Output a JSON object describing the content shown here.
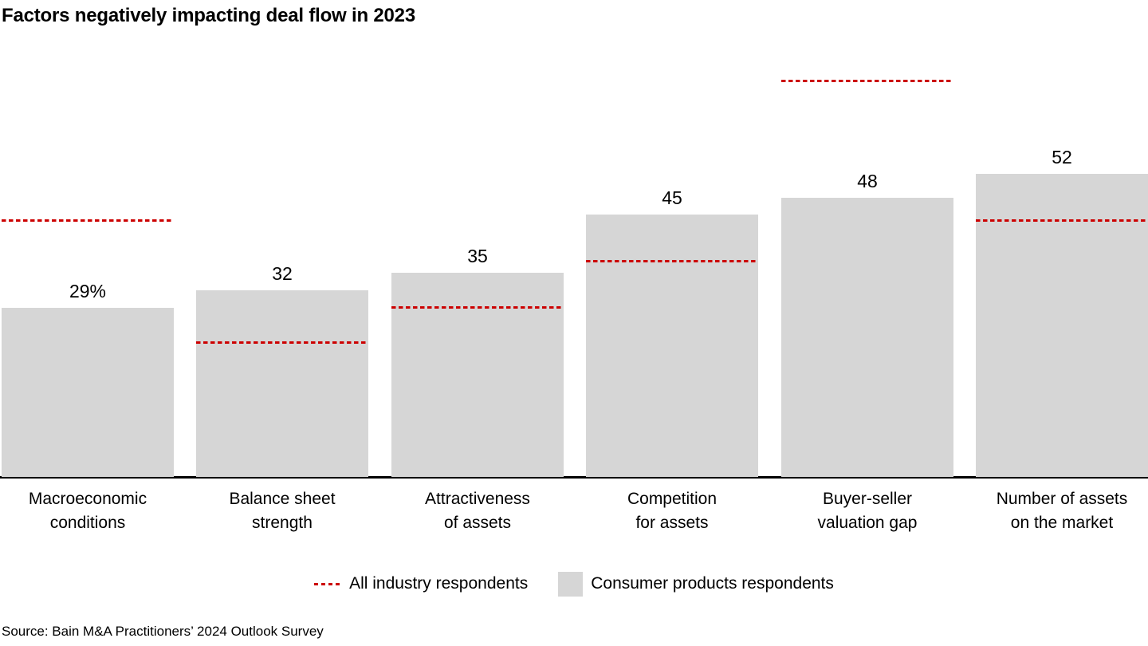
{
  "chart_data": {
    "type": "bar",
    "title": "Factors negatively impacting deal flow in 2023",
    "categories": [
      "Macroeconomic\nconditions",
      "Balance sheet\nstrength",
      "Attractiveness\nof assets",
      "Competition\nfor assets",
      "Buyer-seller\nvaluation gap",
      "Number of assets\non the market"
    ],
    "series": [
      {
        "name": "All industry respondents",
        "style": "dashed-line",
        "color": "#cc0000",
        "values": [
          44,
          23,
          29,
          37,
          68,
          44
        ]
      },
      {
        "name": "Consumer products respondents",
        "style": "bar",
        "color": "#d6d6d6",
        "values": [
          29,
          32,
          35,
          45,
          48,
          52
        ]
      }
    ],
    "value_labels": [
      "29%",
      "32",
      "35",
      "45",
      "48",
      "52"
    ],
    "unit": "%",
    "ylim": [
      0,
      74
    ],
    "grid": false,
    "legend_position": "bottom",
    "source": "Source: Bain M&A Practitioners’ 2024 Outlook Survey"
  }
}
